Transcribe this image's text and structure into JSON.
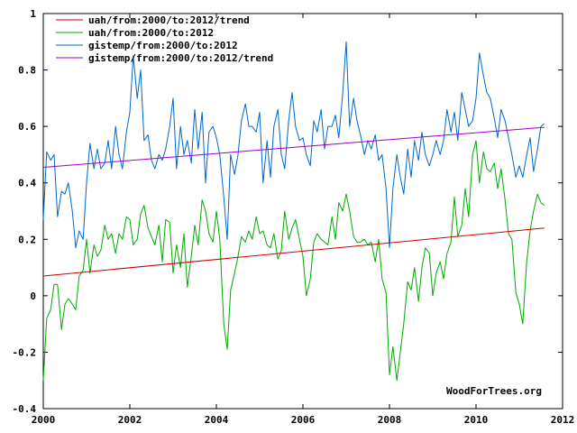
{
  "chart_data": {
    "type": "line",
    "xlim": [
      2000,
      2012
    ],
    "ylim": [
      -0.4,
      1
    ],
    "x_ticks": [
      2000,
      2002,
      2004,
      2006,
      2008,
      2010,
      2012
    ],
    "y_ticks": [
      -0.4,
      -0.2,
      0,
      0.2,
      0.4,
      0.6,
      0.8,
      1
    ],
    "x_tick_labels": [
      "2000",
      "2002",
      "2004",
      "2006",
      "2008",
      "2010",
      "2012"
    ],
    "y_tick_labels": [
      "-0.4",
      "-0.2",
      "0",
      "0.2",
      "0.4",
      "0.6",
      "0.8",
      "1"
    ],
    "grid": false,
    "legend_position": "top-left",
    "annotation": "WoodForTrees.org",
    "series": [
      {
        "name": "uah/from:2000/to:2012/trend",
        "color": "#cc0000",
        "x": [
          2000,
          2011.58
        ],
        "y": [
          0.07,
          0.24
        ]
      },
      {
        "name": "uah/from:2000/to:2012",
        "color": "#00aa00",
        "x": [
          2000.0,
          2000.08,
          2000.17,
          2000.25,
          2000.33,
          2000.42,
          2000.5,
          2000.58,
          2000.67,
          2000.75,
          2000.83,
          2000.92,
          2001.0,
          2001.08,
          2001.17,
          2001.25,
          2001.33,
          2001.42,
          2001.5,
          2001.58,
          2001.67,
          2001.75,
          2001.83,
          2001.92,
          2002.0,
          2002.08,
          2002.17,
          2002.25,
          2002.33,
          2002.42,
          2002.5,
          2002.58,
          2002.67,
          2002.75,
          2002.83,
          2002.92,
          2003.0,
          2003.08,
          2003.17,
          2003.25,
          2003.33,
          2003.42,
          2003.5,
          2003.58,
          2003.67,
          2003.75,
          2003.83,
          2003.92,
          2004.0,
          2004.08,
          2004.17,
          2004.25,
          2004.33,
          2004.42,
          2004.5,
          2004.58,
          2004.67,
          2004.75,
          2004.83,
          2004.92,
          2005.0,
          2005.08,
          2005.17,
          2005.25,
          2005.33,
          2005.42,
          2005.5,
          2005.58,
          2005.67,
          2005.75,
          2005.83,
          2005.92,
          2006.0,
          2006.08,
          2006.17,
          2006.25,
          2006.33,
          2006.42,
          2006.5,
          2006.58,
          2006.67,
          2006.75,
          2006.83,
          2006.92,
          2007.0,
          2007.08,
          2007.17,
          2007.25,
          2007.33,
          2007.42,
          2007.5,
          2007.58,
          2007.67,
          2007.75,
          2007.83,
          2007.92,
          2008.0,
          2008.08,
          2008.17,
          2008.25,
          2008.33,
          2008.42,
          2008.5,
          2008.58,
          2008.67,
          2008.75,
          2008.83,
          2008.92,
          2009.0,
          2009.08,
          2009.17,
          2009.25,
          2009.33,
          2009.42,
          2009.5,
          2009.58,
          2009.67,
          2009.75,
          2009.83,
          2009.92,
          2010.0,
          2010.08,
          2010.17,
          2010.25,
          2010.33,
          2010.42,
          2010.5,
          2010.58,
          2010.67,
          2010.75,
          2010.83,
          2010.92,
          2011.0,
          2011.08,
          2011.17,
          2011.25,
          2011.33,
          2011.42,
          2011.5,
          2011.58
        ],
        "y": [
          -0.3,
          -0.08,
          -0.05,
          0.04,
          0.04,
          -0.12,
          -0.03,
          -0.01,
          -0.03,
          -0.05,
          0.07,
          0.09,
          0.2,
          0.08,
          0.18,
          0.14,
          0.16,
          0.25,
          0.2,
          0.22,
          0.15,
          0.22,
          0.2,
          0.28,
          0.27,
          0.18,
          0.2,
          0.29,
          0.32,
          0.24,
          0.21,
          0.18,
          0.25,
          0.12,
          0.27,
          0.26,
          0.08,
          0.18,
          0.1,
          0.22,
          0.03,
          0.14,
          0.25,
          0.18,
          0.34,
          0.3,
          0.22,
          0.19,
          0.3,
          0.2,
          -0.1,
          -0.19,
          0.02,
          0.08,
          0.14,
          0.21,
          0.19,
          0.23,
          0.2,
          0.28,
          0.22,
          0.23,
          0.18,
          0.17,
          0.22,
          0.13,
          0.16,
          0.3,
          0.2,
          0.24,
          0.27,
          0.2,
          0.14,
          0.0,
          0.06,
          0.19,
          0.22,
          0.2,
          0.19,
          0.18,
          0.28,
          0.2,
          0.33,
          0.3,
          0.36,
          0.3,
          0.21,
          0.19,
          0.19,
          0.2,
          0.18,
          0.19,
          0.12,
          0.2,
          0.06,
          0.01,
          -0.28,
          -0.18,
          -0.3,
          -0.2,
          -0.1,
          0.05,
          0.02,
          0.1,
          -0.02,
          0.1,
          0.17,
          0.15,
          0.0,
          0.08,
          0.12,
          0.06,
          0.15,
          0.19,
          0.35,
          0.21,
          0.25,
          0.38,
          0.28,
          0.5,
          0.55,
          0.4,
          0.51,
          0.45,
          0.44,
          0.47,
          0.38,
          0.45,
          0.34,
          0.22,
          0.2,
          0.01,
          -0.03,
          -0.1,
          0.12,
          0.23,
          0.3,
          0.36,
          0.33,
          0.32
        ]
      },
      {
        "name": "gistemp/from:2000/to:2012",
        "color": "#0066cc",
        "x": [
          2000.0,
          2000.08,
          2000.17,
          2000.25,
          2000.33,
          2000.42,
          2000.5,
          2000.58,
          2000.67,
          2000.75,
          2000.83,
          2000.92,
          2001.0,
          2001.08,
          2001.17,
          2001.25,
          2001.33,
          2001.42,
          2001.5,
          2001.58,
          2001.67,
          2001.75,
          2001.83,
          2001.92,
          2002.0,
          2002.08,
          2002.17,
          2002.25,
          2002.33,
          2002.42,
          2002.5,
          2002.58,
          2002.67,
          2002.75,
          2002.83,
          2002.92,
          2003.0,
          2003.08,
          2003.17,
          2003.25,
          2003.33,
          2003.42,
          2003.5,
          2003.58,
          2003.67,
          2003.75,
          2003.83,
          2003.92,
          2004.0,
          2004.08,
          2004.17,
          2004.25,
          2004.33,
          2004.42,
          2004.5,
          2004.58,
          2004.67,
          2004.75,
          2004.83,
          2004.92,
          2005.0,
          2005.08,
          2005.17,
          2005.25,
          2005.33,
          2005.42,
          2005.5,
          2005.58,
          2005.67,
          2005.75,
          2005.83,
          2005.92,
          2006.0,
          2006.08,
          2006.17,
          2006.25,
          2006.33,
          2006.42,
          2006.5,
          2006.58,
          2006.67,
          2006.75,
          2006.83,
          2006.92,
          2007.0,
          2007.08,
          2007.17,
          2007.25,
          2007.33,
          2007.42,
          2007.5,
          2007.58,
          2007.67,
          2007.75,
          2007.83,
          2007.92,
          2008.0,
          2008.08,
          2008.17,
          2008.25,
          2008.33,
          2008.42,
          2008.5,
          2008.58,
          2008.67,
          2008.75,
          2008.83,
          2008.92,
          2009.0,
          2009.08,
          2009.17,
          2009.25,
          2009.33,
          2009.42,
          2009.5,
          2009.58,
          2009.67,
          2009.75,
          2009.83,
          2009.92,
          2010.0,
          2010.08,
          2010.17,
          2010.25,
          2010.33,
          2010.42,
          2010.5,
          2010.58,
          2010.67,
          2010.75,
          2010.83,
          2010.92,
          2011.0,
          2011.08,
          2011.17,
          2011.25,
          2011.33,
          2011.42,
          2011.5,
          2011.58
        ],
        "y": [
          0.27,
          0.51,
          0.48,
          0.5,
          0.28,
          0.37,
          0.36,
          0.4,
          0.3,
          0.17,
          0.23,
          0.2,
          0.4,
          0.54,
          0.45,
          0.52,
          0.45,
          0.47,
          0.55,
          0.45,
          0.6,
          0.5,
          0.45,
          0.58,
          0.65,
          0.85,
          0.7,
          0.8,
          0.55,
          0.57,
          0.48,
          0.45,
          0.5,
          0.48,
          0.52,
          0.6,
          0.7,
          0.45,
          0.6,
          0.5,
          0.55,
          0.47,
          0.66,
          0.52,
          0.65,
          0.4,
          0.58,
          0.6,
          0.56,
          0.5,
          0.35,
          0.2,
          0.5,
          0.43,
          0.5,
          0.62,
          0.68,
          0.6,
          0.6,
          0.58,
          0.65,
          0.4,
          0.55,
          0.42,
          0.6,
          0.66,
          0.5,
          0.45,
          0.62,
          0.72,
          0.6,
          0.55,
          0.56,
          0.5,
          0.46,
          0.62,
          0.58,
          0.66,
          0.52,
          0.6,
          0.6,
          0.64,
          0.56,
          0.72,
          0.9,
          0.6,
          0.7,
          0.62,
          0.57,
          0.5,
          0.55,
          0.52,
          0.57,
          0.48,
          0.5,
          0.38,
          0.17,
          0.38,
          0.5,
          0.42,
          0.36,
          0.52,
          0.42,
          0.55,
          0.48,
          0.58,
          0.5,
          0.46,
          0.5,
          0.55,
          0.5,
          0.55,
          0.66,
          0.58,
          0.65,
          0.55,
          0.72,
          0.66,
          0.6,
          0.62,
          0.7,
          0.86,
          0.78,
          0.72,
          0.7,
          0.63,
          0.56,
          0.66,
          0.62,
          0.56,
          0.5,
          0.42,
          0.46,
          0.42,
          0.5,
          0.56,
          0.44,
          0.52,
          0.6,
          0.61
        ]
      },
      {
        "name": "gistemp/from:2000/to:2012/trend",
        "color": "#9900cc",
        "x": [
          2000,
          2011.58
        ],
        "y": [
          0.455,
          0.597
        ]
      }
    ]
  }
}
